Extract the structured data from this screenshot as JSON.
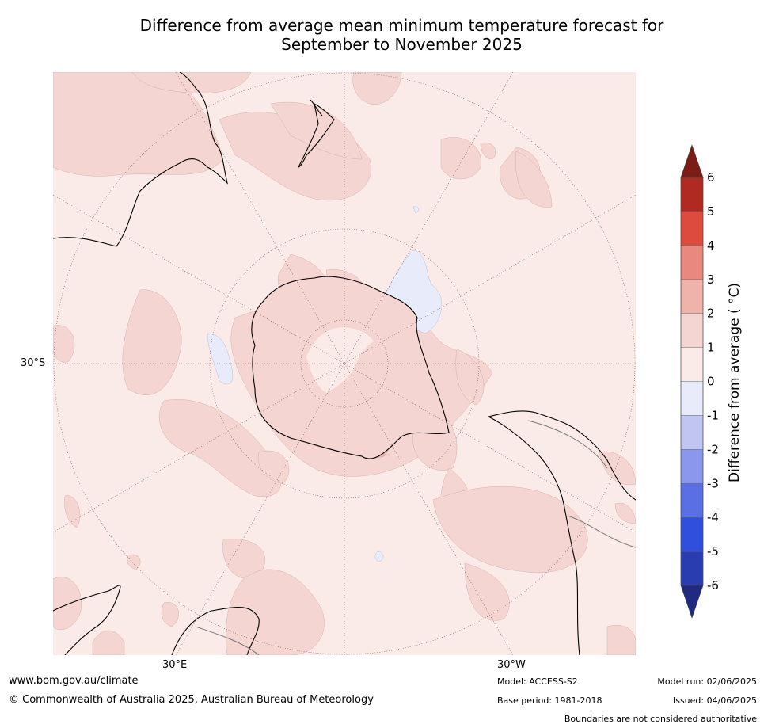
{
  "title": {
    "line1": "Difference from average mean minimum temperature forecast for",
    "line2": "September to November 2025"
  },
  "map": {
    "latitude_label": "30°S",
    "longitude_labels": [
      "30°E",
      "30°W"
    ],
    "background_anomaly_color": "#fbebe8"
  },
  "colorbar": {
    "title": "Difference from average ( °C)",
    "tick_labels": [
      "6",
      "5",
      "4",
      "3",
      "2",
      "1",
      "0",
      "-1",
      "-2",
      "-3",
      "-4",
      "-5",
      "-6"
    ],
    "bins": [
      {
        "range": [
          5,
          6
        ],
        "color": "#b02a22"
      },
      {
        "range": [
          4,
          5
        ],
        "color": "#dd4b3f"
      },
      {
        "range": [
          3,
          4
        ],
        "color": "#e8887e"
      },
      {
        "range": [
          2,
          3
        ],
        "color": "#efb3ab"
      },
      {
        "range": [
          1,
          2
        ],
        "color": "#f5d5d1"
      },
      {
        "range": [
          0,
          1
        ],
        "color": "#fbebe8"
      },
      {
        "range": [
          -1,
          0
        ],
        "color": "#e8ebfa"
      },
      {
        "range": [
          -2,
          -1
        ],
        "color": "#c0c6f1"
      },
      {
        "range": [
          -3,
          -2
        ],
        "color": "#8a97ec"
      },
      {
        "range": [
          -4,
          -3
        ],
        "color": "#5b6fe4"
      },
      {
        "range": [
          -5,
          -4
        ],
        "color": "#2f4fdc"
      },
      {
        "range": [
          -6,
          -5
        ],
        "color": "#2a3db0"
      }
    ],
    "over_color": "#7c1c16",
    "under_color": "#1f2a80"
  },
  "footer": {
    "website": "www.bom.gov.au/climate",
    "copyright": "© Commonwealth of Australia 2025, Australian Bureau of Meteorology",
    "model": "Model: ACCESS-S2",
    "base_period": "Base period: 1981-2018",
    "model_run": "Model run: 02/06/2025",
    "issued": "Issued: 04/06/2025",
    "disclaimer": "Boundaries are not considered authoritative"
  }
}
